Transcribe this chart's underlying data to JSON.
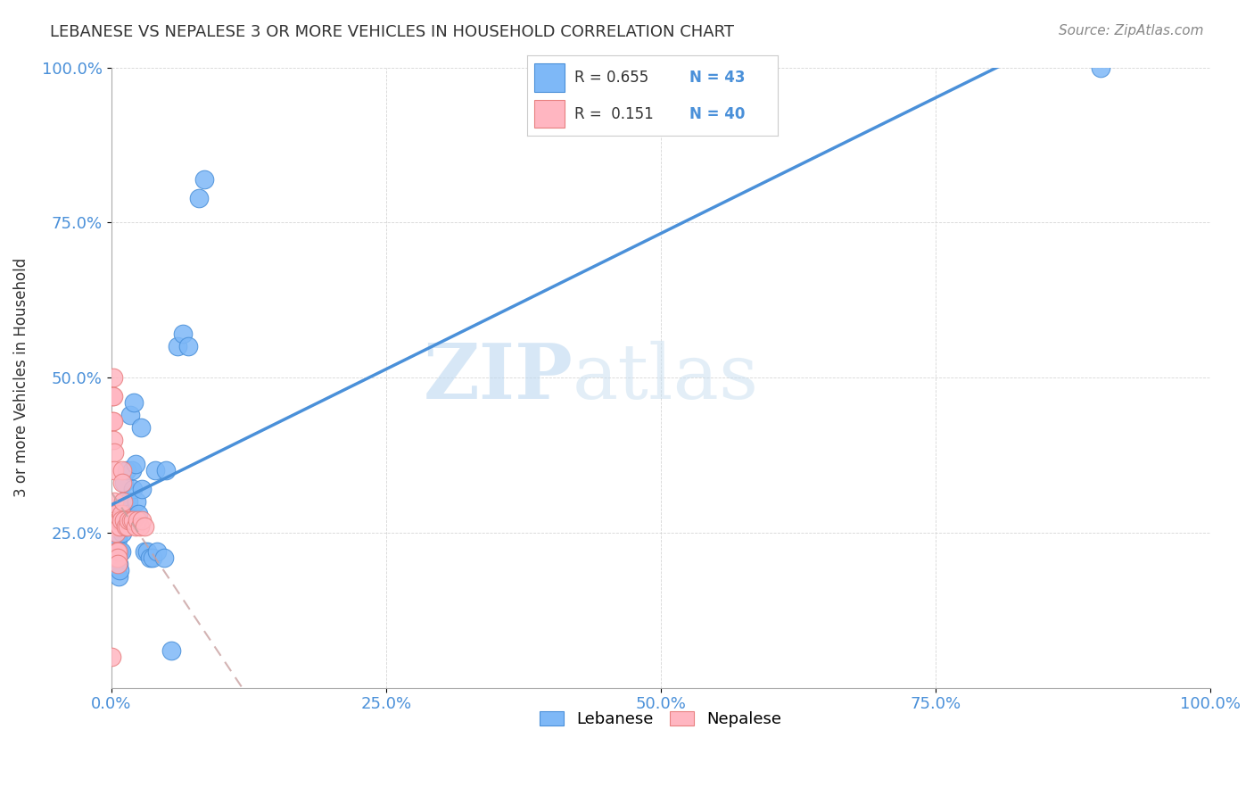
{
  "title": "LEBANESE VS NEPALESE 3 OR MORE VEHICLES IN HOUSEHOLD CORRELATION CHART",
  "source": "Source: ZipAtlas.com",
  "ylabel": "3 or more Vehicles in Household",
  "legend_r1": "R = 0.655",
  "legend_n1": "N = 43",
  "legend_r2": "R =  0.151",
  "legend_n2": "N = 40",
  "lebanese_color": "#7EB8F7",
  "nepalese_color": "#FFB6C1",
  "line_lebanese": "#4A90D9",
  "line_nepalese": "#D08080",
  "watermark_zip": "ZIP",
  "watermark_atlas": "atlas",
  "lebanese_x": [
    0.004,
    0.006,
    0.006,
    0.007,
    0.007,
    0.008,
    0.008,
    0.009,
    0.009,
    0.01,
    0.01,
    0.011,
    0.011,
    0.012,
    0.012,
    0.013,
    0.014,
    0.016,
    0.016,
    0.017,
    0.019,
    0.02,
    0.021,
    0.022,
    0.023,
    0.025,
    0.027,
    0.028,
    0.03,
    0.033,
    0.035,
    0.038,
    0.04,
    0.042,
    0.048,
    0.05,
    0.055,
    0.06,
    0.065,
    0.07,
    0.08,
    0.085,
    0.9
  ],
  "lebanese_y": [
    0.22,
    0.22,
    0.24,
    0.2,
    0.18,
    0.22,
    0.19,
    0.22,
    0.28,
    0.25,
    0.28,
    0.27,
    0.3,
    0.33,
    0.26,
    0.27,
    0.35,
    0.3,
    0.28,
    0.44,
    0.35,
    0.32,
    0.46,
    0.36,
    0.3,
    0.28,
    0.42,
    0.32,
    0.22,
    0.22,
    0.21,
    0.21,
    0.35,
    0.22,
    0.21,
    0.35,
    0.06,
    0.55,
    0.57,
    0.55,
    0.79,
    0.82,
    1.0
  ],
  "nepalese_x": [
    0.001,
    0.001,
    0.002,
    0.002,
    0.002,
    0.002,
    0.003,
    0.003,
    0.003,
    0.004,
    0.004,
    0.004,
    0.004,
    0.005,
    0.005,
    0.005,
    0.006,
    0.006,
    0.006,
    0.007,
    0.007,
    0.008,
    0.008,
    0.009,
    0.009,
    0.01,
    0.01,
    0.011,
    0.012,
    0.013,
    0.015,
    0.016,
    0.018,
    0.02,
    0.022,
    0.024,
    0.026,
    0.028,
    0.03,
    0.0
  ],
  "nepalese_y": [
    0.43,
    0.47,
    0.5,
    0.47,
    0.43,
    0.4,
    0.38,
    0.35,
    0.3,
    0.28,
    0.27,
    0.26,
    0.25,
    0.22,
    0.22,
    0.21,
    0.22,
    0.21,
    0.2,
    0.27,
    0.27,
    0.27,
    0.26,
    0.28,
    0.27,
    0.35,
    0.33,
    0.3,
    0.27,
    0.26,
    0.26,
    0.27,
    0.27,
    0.27,
    0.26,
    0.27,
    0.26,
    0.27,
    0.26,
    0.05
  ],
  "xlim": [
    0.0,
    1.0
  ],
  "ylim": [
    0.0,
    1.0
  ],
  "xticks": [
    0.0,
    0.25,
    0.5,
    0.75,
    1.0
  ],
  "yticks": [
    0.25,
    0.5,
    0.75,
    1.0
  ],
  "xticklabels": [
    "0.0%",
    "25.0%",
    "50.0%",
    "75.0%",
    "100.0%"
  ],
  "yticklabels": [
    "25.0%",
    "50.0%",
    "75.0%",
    "100.0%"
  ]
}
